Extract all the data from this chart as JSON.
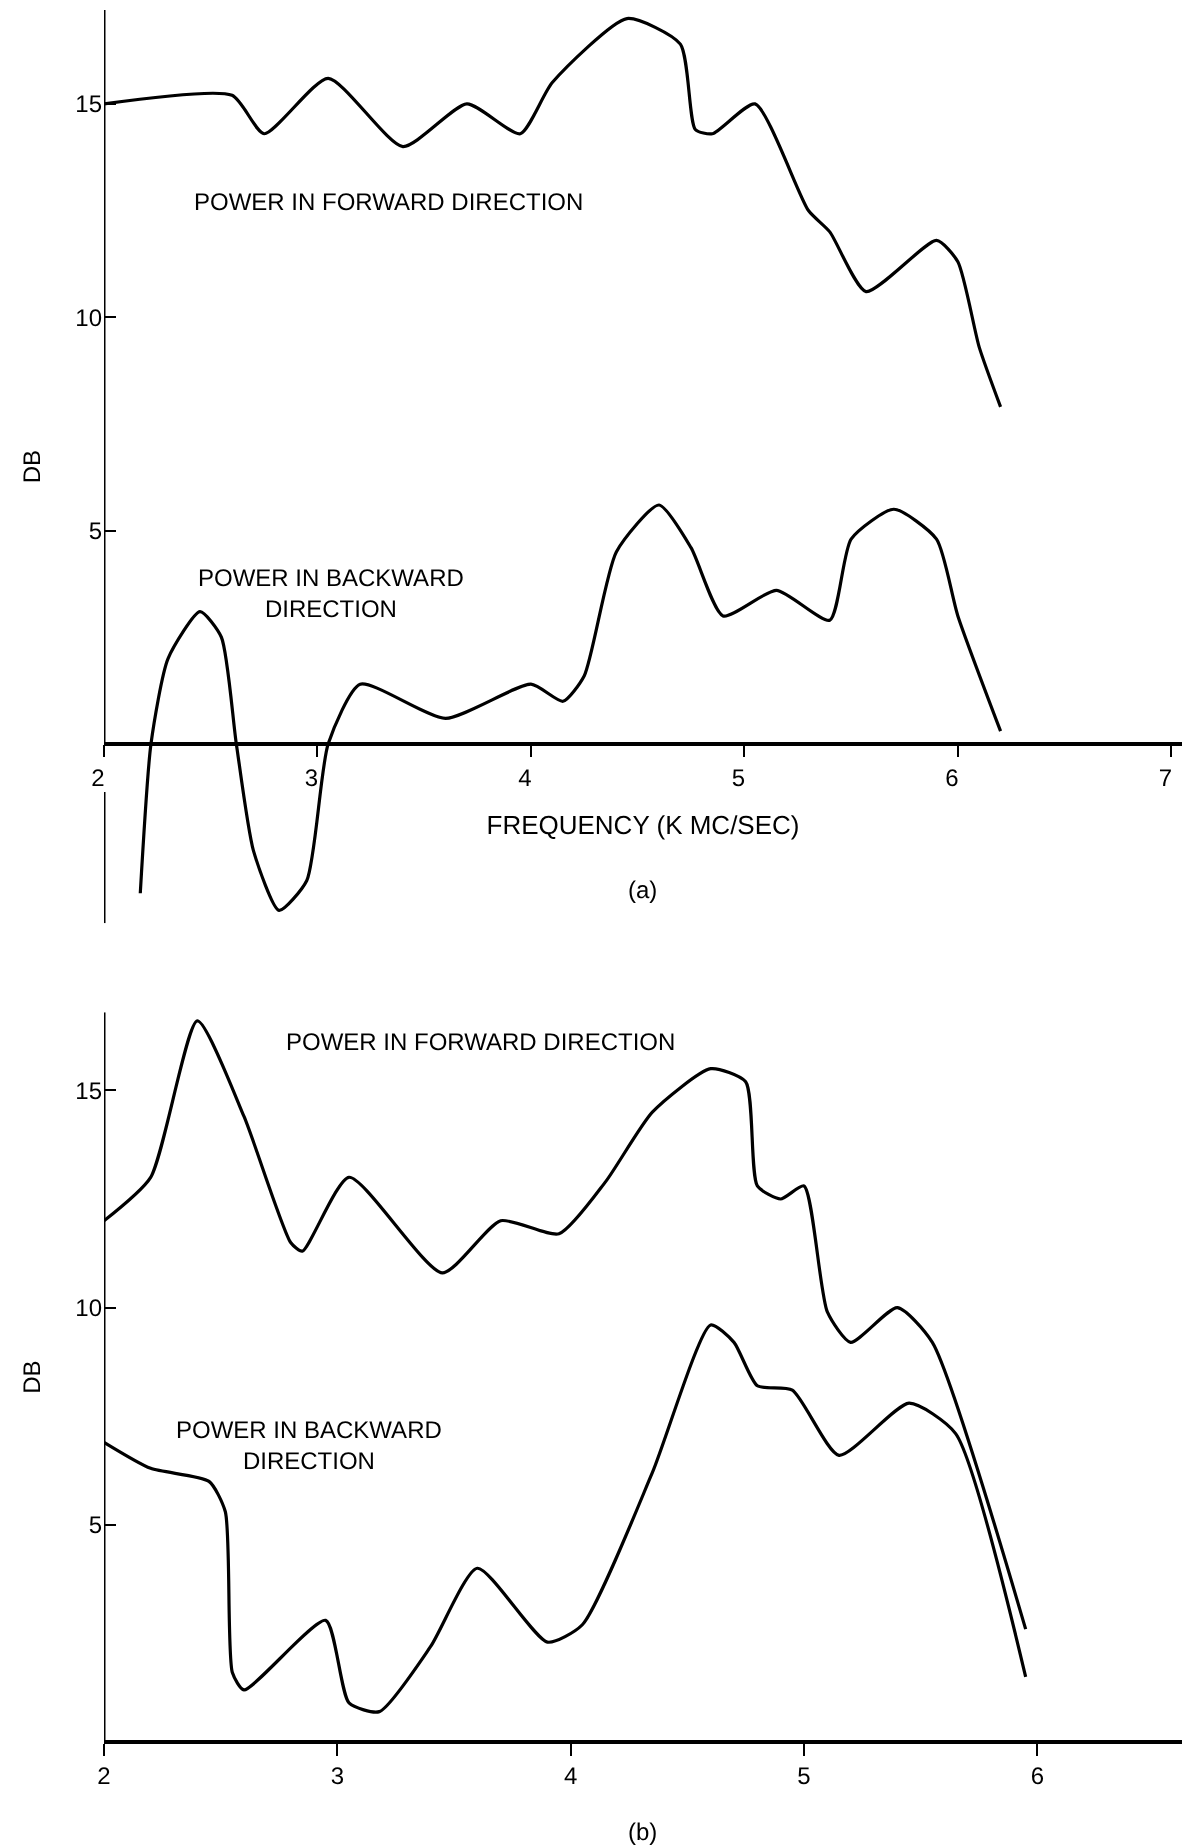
{
  "chart_data": [
    {
      "type": "line",
      "ylabel": "DB",
      "xlabel": "FREQUENCY (K MC/SEC)",
      "xlim": [
        2,
        7.05
      ],
      "xticks": [
        2,
        3,
        4,
        5,
        6,
        7
      ],
      "ylim": [
        -4.2,
        17.2
      ],
      "yticks": [
        5,
        10,
        15
      ],
      "line_style": "solid",
      "annotations": [
        "POWER IN FORWARD DIRECTION",
        "POWER IN BACKWARD\nDIRECTION",
        "(a)"
      ],
      "series": [
        {
          "color": "#000000",
          "x": [
            2.0,
            2.6,
            2.75,
            3.05,
            3.4,
            3.7,
            3.95,
            4.1,
            4.45,
            4.7,
            4.77,
            4.85,
            5.05,
            5.3,
            5.4,
            5.57,
            5.9,
            6.0,
            6.1,
            6.2
          ],
          "values": [
            15.0,
            15.2,
            14.3,
            15.6,
            14.0,
            15.0,
            14.3,
            15.5,
            17.0,
            16.4,
            14.4,
            14.3,
            15.0,
            12.5,
            12.0,
            10.6,
            11.8,
            11.3,
            9.3,
            7.9
          ]
        },
        {
          "color": "#000000",
          "x": [
            2.17,
            2.22,
            2.3,
            2.45,
            2.55,
            2.62,
            2.7,
            2.82,
            2.95,
            3.05,
            3.2,
            3.6,
            4.0,
            4.15,
            4.25,
            4.4,
            4.6,
            4.75,
            4.9,
            5.15,
            5.4,
            5.5,
            5.7,
            5.9,
            6.0,
            6.2
          ],
          "values": [
            -3.5,
            0,
            2.0,
            3.1,
            2.5,
            0,
            -2.5,
            -3.9,
            -3.2,
            0,
            1.4,
            0.6,
            1.4,
            1.0,
            1.6,
            4.5,
            5.6,
            4.6,
            3.0,
            3.6,
            2.9,
            4.8,
            5.5,
            4.8,
            3.0,
            0.3
          ]
        }
      ]
    },
    {
      "type": "line",
      "ylabel": "DB",
      "xlim": [
        2,
        6.62
      ],
      "xticks": [
        2,
        3,
        4,
        5,
        6
      ],
      "ylim": [
        0,
        16.8
      ],
      "yticks": [
        5,
        10,
        15
      ],
      "line_style": "solid",
      "annotations": [
        "POWER IN FORWARD DIRECTION",
        "POWER IN BACKWARD\nDIRECTION",
        "(b)"
      ],
      "series": [
        {
          "color": "#000000",
          "x": [
            2.0,
            2.2,
            2.4,
            2.6,
            2.8,
            2.85,
            3.05,
            3.45,
            3.7,
            3.95,
            4.15,
            4.35,
            4.6,
            4.75,
            4.8,
            4.9,
            5.0,
            5.1,
            5.2,
            5.4,
            5.55,
            5.95
          ],
          "values": [
            12.0,
            13.0,
            16.6,
            14.4,
            11.5,
            11.3,
            13.0,
            10.8,
            12.0,
            11.7,
            12.9,
            14.5,
            15.5,
            15.2,
            12.8,
            12.5,
            12.8,
            9.9,
            9.2,
            10.0,
            9.2,
            2.6
          ]
        },
        {
          "color": "#000000",
          "x": [
            2.0,
            2.2,
            2.45,
            2.52,
            2.55,
            2.6,
            2.95,
            3.05,
            3.18,
            3.4,
            3.6,
            3.9,
            4.05,
            4.35,
            4.6,
            4.7,
            4.8,
            4.95,
            5.15,
            5.45,
            5.65,
            5.95
          ],
          "values": [
            6.9,
            6.3,
            6.0,
            5.3,
            1.6,
            1.2,
            2.8,
            0.9,
            0.7,
            2.2,
            4.0,
            2.3,
            2.7,
            6.2,
            9.6,
            9.2,
            8.2,
            8.1,
            6.6,
            7.8,
            7.1,
            1.5
          ]
        }
      ]
    }
  ]
}
